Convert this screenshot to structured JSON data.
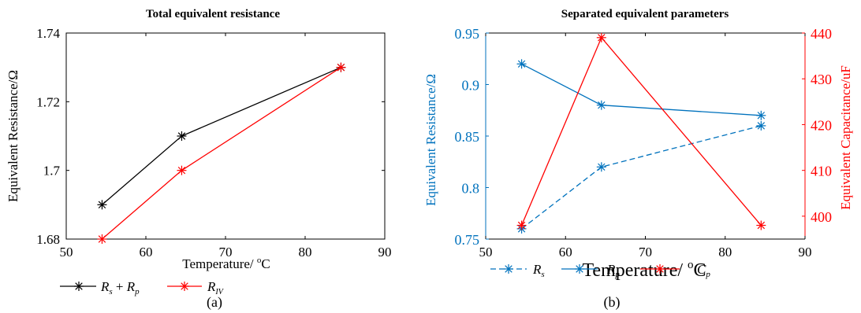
{
  "colors": {
    "black": "#000000",
    "red": "#ff0000",
    "blue": "#0072bd"
  },
  "chart_data": [
    {
      "type": "line",
      "title": "Total equivalent resistance",
      "xlabel": "Temperature/ °C",
      "ylabel": "Equivalent Resistance/Ω",
      "xlim": [
        50,
        90
      ],
      "ylim": [
        1.68,
        1.74
      ],
      "x_ticks": [
        "50",
        "60",
        "70",
        "80",
        "90"
      ],
      "y_ticks": [
        "1.68",
        "1.7",
        "1.72",
        "1.74"
      ],
      "grid": false,
      "legend_position": "bottom",
      "series": [
        {
          "name": "R_s + R_p",
          "color": "#000000",
          "marker": "asterisk",
          "x": [
            54.5,
            64.5,
            84.5
          ],
          "y": [
            1.69,
            1.71,
            1.73
          ]
        },
        {
          "name": "R_IV",
          "color": "#ff0000",
          "marker": "asterisk",
          "x": [
            54.5,
            64.5,
            84.5
          ],
          "y": [
            1.68,
            1.7,
            1.73
          ]
        }
      ],
      "caption": "(a)"
    },
    {
      "type": "line",
      "title": "Separated equivalent parameters",
      "xlabel": "Temperature/ °C",
      "ylabel_left": "Equivalent Resistance/Ω",
      "ylabel_right": "Equivalent Capacitance/uF",
      "xlim": [
        50,
        90
      ],
      "ylim_left": [
        0.75,
        0.95
      ],
      "ylim_right": [
        395,
        440
      ],
      "x_ticks": [
        "50",
        "60",
        "70",
        "80",
        "90"
      ],
      "y_ticks_left": [
        "0.75",
        "0.8",
        "0.85",
        "0.9",
        "0.95"
      ],
      "y_ticks_right": [
        "400",
        "410",
        "420",
        "430",
        "440"
      ],
      "grid": false,
      "legend_position": "bottom",
      "series": [
        {
          "name": "R_s",
          "axis": "left",
          "color": "#0072bd",
          "dash": true,
          "marker": "asterisk",
          "x": [
            54.5,
            64.5,
            84.5
          ],
          "y": [
            0.76,
            0.82,
            0.86
          ]
        },
        {
          "name": "R_p",
          "axis": "left",
          "color": "#0072bd",
          "dash": false,
          "marker": "asterisk",
          "x": [
            54.5,
            64.5,
            84.5
          ],
          "y": [
            0.92,
            0.88,
            0.87
          ]
        },
        {
          "name": "C_p",
          "axis": "right",
          "color": "#ff0000",
          "dash": false,
          "marker": "asterisk",
          "x": [
            54.5,
            64.5,
            84.5
          ],
          "y": [
            398,
            439,
            398
          ]
        }
      ],
      "caption": "(b)"
    }
  ]
}
